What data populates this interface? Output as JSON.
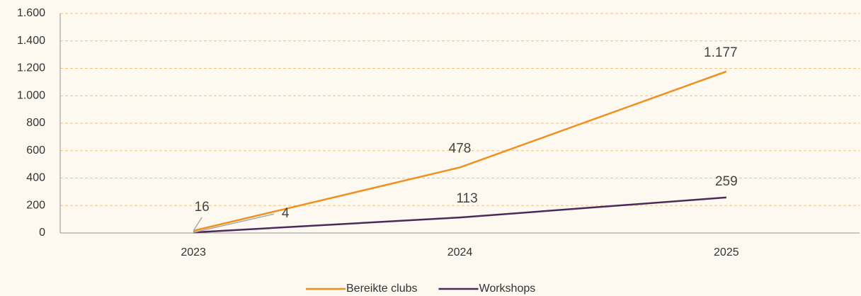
{
  "chart_data": {
    "type": "line",
    "categories": [
      "2023",
      "2024",
      "2025"
    ],
    "series": [
      {
        "name": "Bereikte clubs",
        "color": "#f0901e",
        "values": [
          16,
          478,
          1177
        ],
        "value_labels": [
          "16",
          "478",
          "1.177"
        ]
      },
      {
        "name": "Workshops",
        "color": "#4b2a5a",
        "values": [
          4,
          113,
          259
        ]
      }
    ],
    "ylim": [
      0,
      1600
    ],
    "yticks": [
      0,
      200,
      400,
      600,
      800,
      {
        "value": 1000,
        "label": "1.000"
      },
      {
        "value": 1200,
        "label": "1.200"
      },
      {
        "value": 1400,
        "label": "1.400"
      },
      {
        "value": 1600,
        "label": "1.600"
      }
    ],
    "grid": true,
    "legend": "bottom"
  }
}
